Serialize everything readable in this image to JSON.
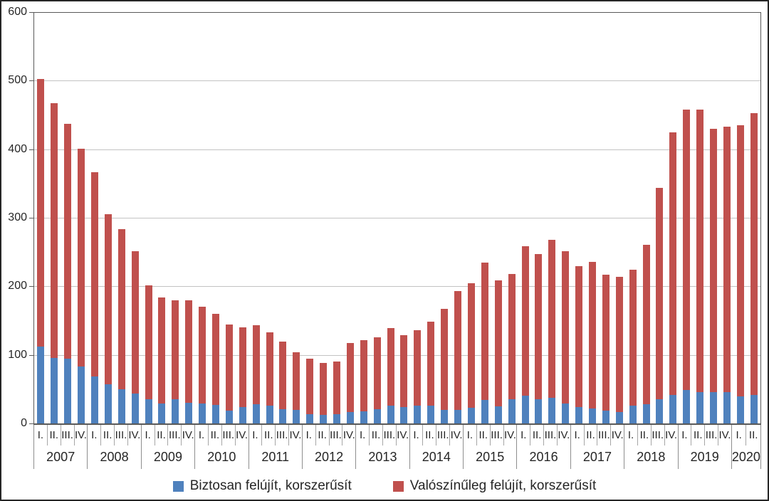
{
  "chart_data": {
    "type": "bar",
    "stacked": true,
    "title": "",
    "xlabel": "",
    "ylabel": "",
    "ylim": [
      0,
      600
    ],
    "yticks": [
      0,
      100,
      200,
      300,
      400,
      500,
      600
    ],
    "grid": true,
    "legend_position": "bottom",
    "years": [
      {
        "year": "2007",
        "quarters": [
          "I.",
          "II.",
          "III.",
          "IV."
        ]
      },
      {
        "year": "2008",
        "quarters": [
          "I.",
          "II.",
          "III.",
          "IV."
        ]
      },
      {
        "year": "2009",
        "quarters": [
          "I.",
          "II.",
          "III.",
          "IV."
        ]
      },
      {
        "year": "2010",
        "quarters": [
          "I.",
          "II.",
          "III.",
          "IV."
        ]
      },
      {
        "year": "2011",
        "quarters": [
          "I.",
          "II.",
          "III.",
          "IV."
        ]
      },
      {
        "year": "2012",
        "quarters": [
          "I.",
          "II.",
          "III.",
          "IV."
        ]
      },
      {
        "year": "2013",
        "quarters": [
          "I.",
          "II.",
          "III.",
          "IV."
        ]
      },
      {
        "year": "2014",
        "quarters": [
          "I.",
          "II.",
          "III.",
          "IV."
        ]
      },
      {
        "year": "2015",
        "quarters": [
          "I.",
          "II.",
          "III.",
          "IV."
        ]
      },
      {
        "year": "2016",
        "quarters": [
          "I.",
          "II.",
          "III.",
          "IV."
        ]
      },
      {
        "year": "2017",
        "quarters": [
          "I.",
          "II.",
          "III.",
          "IV."
        ]
      },
      {
        "year": "2018",
        "quarters": [
          "I.",
          "II.",
          "III.",
          "IV."
        ]
      },
      {
        "year": "2019",
        "quarters": [
          "I.",
          "II.",
          "III.",
          "IV."
        ]
      },
      {
        "year": "2020",
        "quarters": [
          "I.",
          "II."
        ]
      }
    ],
    "series": [
      {
        "name": "Biztosan felújít, korszerűsít",
        "color": "#4F81BD",
        "values": [
          112,
          96,
          94,
          83,
          69,
          57,
          50,
          44,
          35,
          29,
          35,
          30,
          29,
          27,
          19,
          24,
          28,
          26,
          21,
          20,
          14,
          12,
          13,
          17,
          18,
          21,
          26,
          24,
          26,
          26,
          20,
          20,
          23,
          34,
          25,
          35,
          40,
          35,
          37,
          29,
          24,
          22,
          19,
          17,
          26,
          28,
          35,
          42,
          49,
          46,
          46,
          46,
          39,
          42
        ]
      },
      {
        "name": "Valószínűleg felújít, korszerűsít",
        "color": "#C0504D",
        "values": [
          390,
          371,
          343,
          318,
          297,
          248,
          233,
          207,
          166,
          155,
          145,
          150,
          141,
          133,
          125,
          116,
          115,
          107,
          98,
          84,
          81,
          76,
          77,
          100,
          103,
          105,
          113,
          105,
          110,
          122,
          147,
          173,
          182,
          201,
          184,
          183,
          219,
          212,
          231,
          222,
          205,
          214,
          198,
          197,
          198,
          233,
          309,
          383,
          409,
          412,
          384,
          387,
          396,
          411
        ]
      }
    ],
    "stack_totals": [
      502,
      467,
      437,
      401,
      366,
      305,
      283,
      251,
      201,
      184,
      180,
      180,
      170,
      160,
      144,
      140,
      143,
      133,
      119,
      104,
      95,
      88,
      90,
      117,
      121,
      126,
      139,
      129,
      136,
      148,
      167,
      193,
      205,
      235,
      209,
      218,
      259,
      247,
      268,
      251,
      229,
      236,
      217,
      214,
      224,
      261,
      344,
      425,
      458,
      458,
      430,
      433,
      435,
      453
    ]
  },
  "colors": {
    "grid": "#c3c3c3",
    "axis": "#595959",
    "text": "#262626"
  }
}
